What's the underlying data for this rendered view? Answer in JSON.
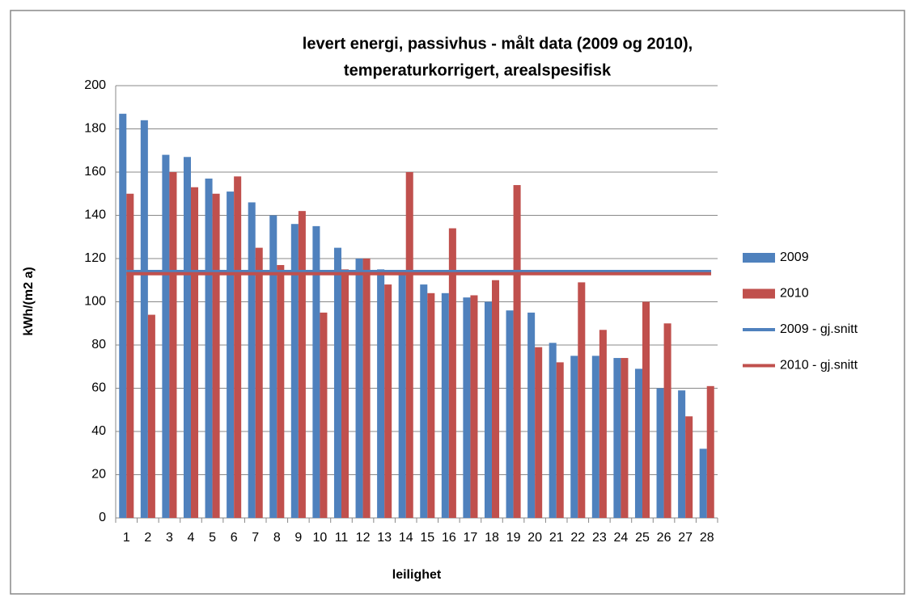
{
  "chart_data": {
    "type": "bar",
    "title": [
      "levert energi, passivhus - målt data (2009 og 2010),",
      "temperaturkorrigert, arealspesifisk"
    ],
    "x_label": "leilighet",
    "y_label": "kWh/(m2 a)",
    "categories": [
      "1",
      "2",
      "3",
      "4",
      "5",
      "6",
      "7",
      "8",
      "9",
      "10",
      "11",
      "12",
      "13",
      "14",
      "15",
      "16",
      "17",
      "18",
      "19",
      "20",
      "21",
      "22",
      "23",
      "24",
      "25",
      "26",
      "27",
      "28"
    ],
    "series": [
      {
        "name": "2009",
        "color": "#4f81bd",
        "values": [
          187,
          184,
          168,
          167,
          157,
          151,
          146,
          140,
          136,
          135,
          125,
          120,
          115,
          113,
          108,
          104,
          102,
          100,
          96,
          95,
          81,
          75,
          75,
          74,
          69,
          60,
          59,
          32
        ]
      },
      {
        "name": "2010",
        "color": "#c0504d",
        "values": [
          150,
          94,
          160,
          153,
          150,
          158,
          125,
          117,
          142,
          95,
          115,
          120,
          108,
          160,
          104,
          134,
          103,
          110,
          154,
          79,
          72,
          109,
          87,
          74,
          100,
          90,
          47,
          61
        ]
      }
    ],
    "averages": [
      {
        "name": "2009 - gj.snitt",
        "color": "#4f81bd",
        "value": 114
      },
      {
        "name": "2010 - gj.snitt",
        "color": "#c0504d",
        "value": 113
      }
    ],
    "ylim": [
      0,
      200
    ],
    "yticks": [
      0,
      20,
      40,
      60,
      80,
      100,
      120,
      140,
      160,
      180,
      200
    ],
    "grid": true,
    "legend": "right"
  }
}
